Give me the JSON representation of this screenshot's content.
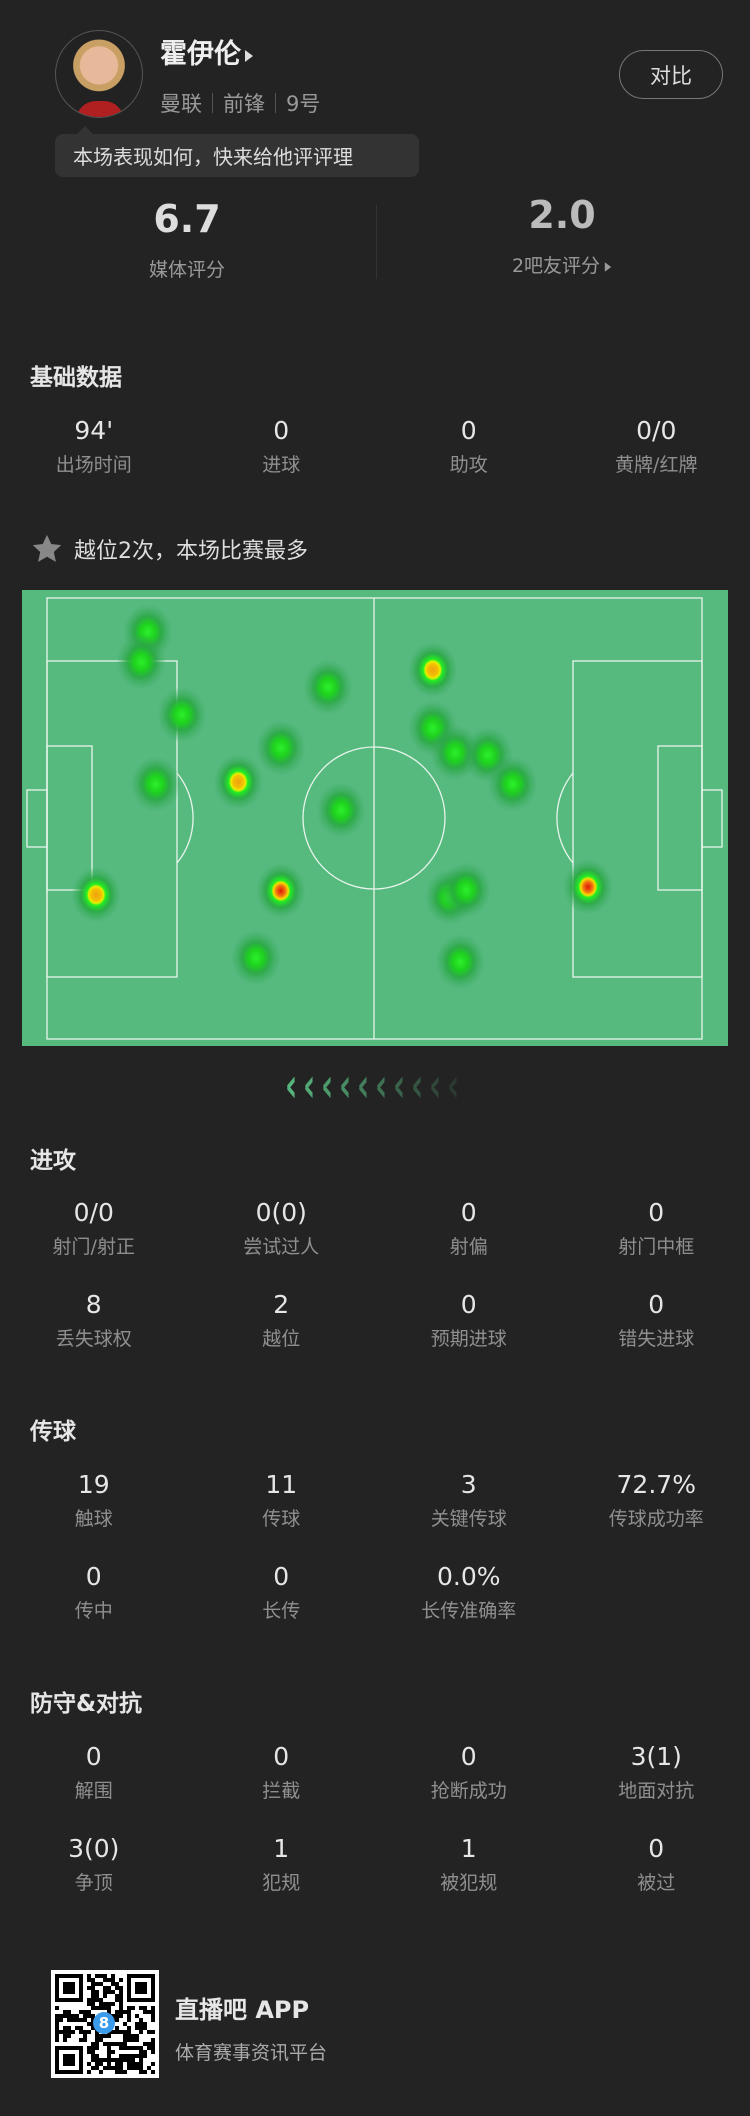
{
  "player": {
    "name": "霍伊伦",
    "team": "曼联",
    "position": "前锋",
    "number": "9号",
    "compare_label": "对比",
    "prompt": "本场表现如何，快来给他评评理"
  },
  "ratings": {
    "media_score": "6.7",
    "media_label": "媒体评分",
    "fan_score": "2.0",
    "fan_label": "2吧友评分"
  },
  "basic": {
    "title": "基础数据",
    "stats": [
      {
        "value": "94'",
        "label": "出场时间"
      },
      {
        "value": "0",
        "label": "进球"
      },
      {
        "value": "0",
        "label": "助攻"
      },
      {
        "value": "0/0",
        "label": "黄牌/红牌"
      }
    ]
  },
  "highlight": {
    "text": "越位2次，本场比赛最多",
    "icon": "star-icon"
  },
  "heatmap": {
    "pitch_color": "#56ba7f",
    "line_color": "#e8f4ec",
    "attack_direction": "left",
    "points": [
      {
        "x": 15.4,
        "y": 7.7,
        "i": 0.4
      },
      {
        "x": 14.4,
        "y": 14.5,
        "i": 0.4
      },
      {
        "x": 42.9,
        "y": 20.2,
        "i": 0.4
      },
      {
        "x": 58.9,
        "y": 16.3,
        "i": 0.8
      },
      {
        "x": 20.6,
        "y": 26.5,
        "i": 0.4
      },
      {
        "x": 58.9,
        "y": 29.5,
        "i": 0.4
      },
      {
        "x": 62.3,
        "y": 35.1,
        "i": 0.4
      },
      {
        "x": 67.3,
        "y": 35.6,
        "i": 0.4
      },
      {
        "x": 71.1,
        "y": 42.2,
        "i": 0.4
      },
      {
        "x": 35.7,
        "y": 34.0,
        "i": 0.4
      },
      {
        "x": 29.2,
        "y": 41.7,
        "i": 0.7
      },
      {
        "x": 16.6,
        "y": 42.2,
        "i": 0.4
      },
      {
        "x": 44.9,
        "y": 48.1,
        "i": 0.4
      },
      {
        "x": 7.5,
        "y": 67.3,
        "i": 0.7
      },
      {
        "x": 35.7,
        "y": 66.4,
        "i": 1.0
      },
      {
        "x": 61.5,
        "y": 67.8,
        "i": 0.4
      },
      {
        "x": 64.0,
        "y": 66.2,
        "i": 0.4
      },
      {
        "x": 82.6,
        "y": 65.5,
        "i": 1.0
      },
      {
        "x": 31.9,
        "y": 81.6,
        "i": 0.4
      },
      {
        "x": 63.1,
        "y": 82.5,
        "i": 0.4
      }
    ]
  },
  "attack": {
    "title": "进攻",
    "stats": [
      {
        "value": "0/0",
        "label": "射门/射正"
      },
      {
        "value": "0(0)",
        "label": "尝试过人"
      },
      {
        "value": "0",
        "label": "射偏"
      },
      {
        "value": "0",
        "label": "射门中框"
      },
      {
        "value": "8",
        "label": "丢失球权"
      },
      {
        "value": "2",
        "label": "越位"
      },
      {
        "value": "0",
        "label": "预期进球"
      },
      {
        "value": "0",
        "label": "错失进球"
      }
    ]
  },
  "passing": {
    "title": "传球",
    "stats": [
      {
        "value": "19",
        "label": "触球"
      },
      {
        "value": "11",
        "label": "传球"
      },
      {
        "value": "3",
        "label": "关键传球"
      },
      {
        "value": "72.7%",
        "label": "传球成功率"
      },
      {
        "value": "0",
        "label": "传中"
      },
      {
        "value": "0",
        "label": "长传"
      },
      {
        "value": "0.0%",
        "label": "长传准确率"
      }
    ]
  },
  "defense": {
    "title": "防守&对抗",
    "stats": [
      {
        "value": "0",
        "label": "解围"
      },
      {
        "value": "0",
        "label": "拦截"
      },
      {
        "value": "0",
        "label": "抢断成功"
      },
      {
        "value": "3(1)",
        "label": "地面对抗"
      },
      {
        "value": "3(0)",
        "label": "争顶"
      },
      {
        "value": "1",
        "label": "犯规"
      },
      {
        "value": "1",
        "label": "被犯规"
      },
      {
        "value": "0",
        "label": "被过"
      }
    ]
  },
  "footer": {
    "app_name": "直播吧 APP",
    "tagline": "体育赛事资讯平台",
    "qr_badge": "8"
  }
}
